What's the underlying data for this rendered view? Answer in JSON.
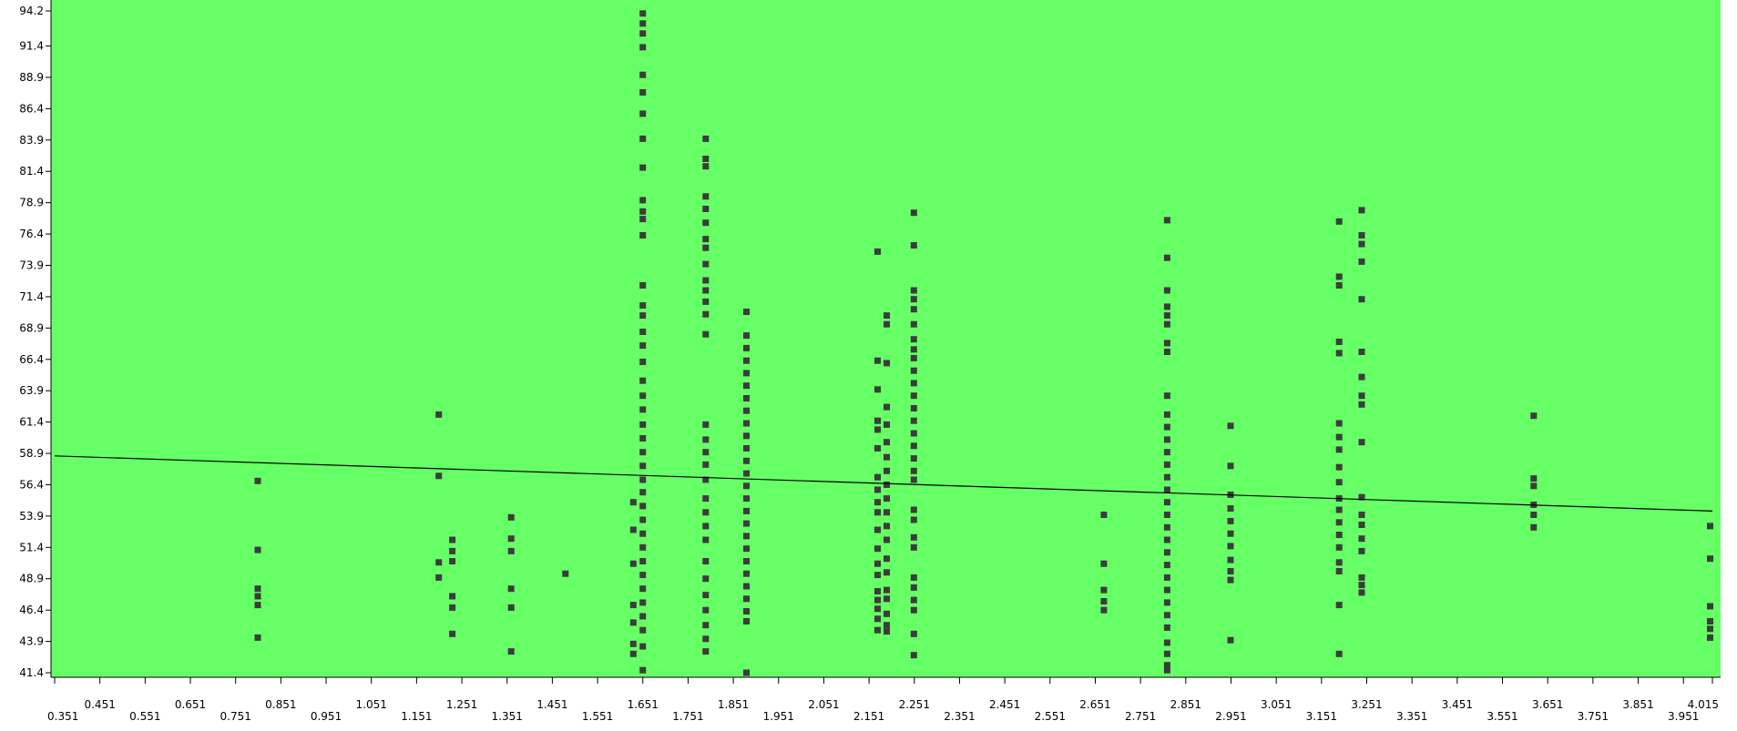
{
  "colors": {
    "plot_background": "#66ff66",
    "points": "#3c3c3c",
    "trend_line": "#000000",
    "axis": "#000000"
  },
  "chart_data": {
    "type": "scatter",
    "title": "",
    "xlabel": "",
    "ylabel": "",
    "grid": false,
    "xlim": [
      0.351,
      4.015
    ],
    "ylim": [
      41.4,
      94.2
    ],
    "x_ticks": [
      "0.351",
      "0.451",
      "0.551",
      "0.651",
      "0.751",
      "0.851",
      "0.951",
      "1.051",
      "1.151",
      "1.251",
      "1.351",
      "1.451",
      "1.551",
      "1.651",
      "1.751",
      "1.851",
      "1.951",
      "2.051",
      "2.151",
      "2.251",
      "2.351",
      "2.451",
      "2.551",
      "2.651",
      "2.751",
      "2.851",
      "2.951",
      "3.051",
      "3.151",
      "3.251",
      "3.351",
      "3.451",
      "3.551",
      "3.651",
      "3.751",
      "3.851",
      "3.951",
      "4.015"
    ],
    "y_ticks": [
      "41.4",
      "43.9",
      "46.4",
      "48.9",
      "51.4",
      "53.9",
      "56.4",
      "58.9",
      "61.4",
      "63.9",
      "66.4",
      "68.9",
      "71.4",
      "73.9",
      "76.4",
      "78.9",
      "81.4",
      "83.9",
      "86.4",
      "88.9",
      "91.4",
      "94.2"
    ],
    "trend_line": {
      "x": [
        0.351,
        4.015
      ],
      "y": [
        58.7,
        54.3
      ]
    },
    "series": [
      {
        "points": [
          [
            0.8,
            56.7
          ],
          [
            0.8,
            51.2
          ],
          [
            0.8,
            48.1
          ],
          [
            0.8,
            47.5
          ],
          [
            0.8,
            46.8
          ],
          [
            0.8,
            44.2
          ],
          [
            1.2,
            62.0
          ],
          [
            1.2,
            57.1
          ],
          [
            1.2,
            50.2
          ],
          [
            1.2,
            49.0
          ],
          [
            1.23,
            52.0
          ],
          [
            1.23,
            51.1
          ],
          [
            1.23,
            50.3
          ],
          [
            1.23,
            47.5
          ],
          [
            1.23,
            46.6
          ],
          [
            1.23,
            44.5
          ],
          [
            1.36,
            53.8
          ],
          [
            1.36,
            52.1
          ],
          [
            1.36,
            51.1
          ],
          [
            1.36,
            48.1
          ],
          [
            1.36,
            46.6
          ],
          [
            1.36,
            43.1
          ],
          [
            1.48,
            49.3
          ],
          [
            1.63,
            55.0
          ],
          [
            1.63,
            52.8
          ],
          [
            1.63,
            50.1
          ],
          [
            1.63,
            46.8
          ],
          [
            1.63,
            45.4
          ],
          [
            1.63,
            43.7
          ],
          [
            1.63,
            42.9
          ],
          [
            1.651,
            94.0
          ],
          [
            1.651,
            93.2
          ],
          [
            1.651,
            92.4
          ],
          [
            1.651,
            91.3
          ],
          [
            1.651,
            89.1
          ],
          [
            1.651,
            87.7
          ],
          [
            1.651,
            86.0
          ],
          [
            1.651,
            84.0
          ],
          [
            1.651,
            81.7
          ],
          [
            1.651,
            79.1
          ],
          [
            1.651,
            78.2
          ],
          [
            1.651,
            77.6
          ],
          [
            1.651,
            76.3
          ],
          [
            1.651,
            72.3
          ],
          [
            1.651,
            70.7
          ],
          [
            1.651,
            69.9
          ],
          [
            1.651,
            68.6
          ],
          [
            1.651,
            67.5
          ],
          [
            1.651,
            66.2
          ],
          [
            1.651,
            64.7
          ],
          [
            1.651,
            63.5
          ],
          [
            1.651,
            62.4
          ],
          [
            1.651,
            61.2
          ],
          [
            1.651,
            60.1
          ],
          [
            1.651,
            59.0
          ],
          [
            1.651,
            57.9
          ],
          [
            1.651,
            56.8
          ],
          [
            1.651,
            55.8
          ],
          [
            1.651,
            54.7
          ],
          [
            1.651,
            53.6
          ],
          [
            1.651,
            52.5
          ],
          [
            1.651,
            51.4
          ],
          [
            1.651,
            50.3
          ],
          [
            1.651,
            49.2
          ],
          [
            1.651,
            48.1
          ],
          [
            1.651,
            47.0
          ],
          [
            1.651,
            45.9
          ],
          [
            1.651,
            44.8
          ],
          [
            1.651,
            43.5
          ],
          [
            1.651,
            41.6
          ],
          [
            1.79,
            84.0
          ],
          [
            1.79,
            82.4
          ],
          [
            1.79,
            81.8
          ],
          [
            1.79,
            79.4
          ],
          [
            1.79,
            78.4
          ],
          [
            1.79,
            77.3
          ],
          [
            1.79,
            76.0
          ],
          [
            1.79,
            75.3
          ],
          [
            1.79,
            74.0
          ],
          [
            1.79,
            72.7
          ],
          [
            1.79,
            71.9
          ],
          [
            1.79,
            71.0
          ],
          [
            1.79,
            70.0
          ],
          [
            1.79,
            68.4
          ],
          [
            1.79,
            61.2
          ],
          [
            1.79,
            60.0
          ],
          [
            1.79,
            59.0
          ],
          [
            1.79,
            58.0
          ],
          [
            1.79,
            56.8
          ],
          [
            1.79,
            55.3
          ],
          [
            1.79,
            54.2
          ],
          [
            1.79,
            53.1
          ],
          [
            1.79,
            52.0
          ],
          [
            1.79,
            50.3
          ],
          [
            1.79,
            48.9
          ],
          [
            1.79,
            47.6
          ],
          [
            1.79,
            46.4
          ],
          [
            1.79,
            45.2
          ],
          [
            1.79,
            44.1
          ],
          [
            1.79,
            43.1
          ],
          [
            1.88,
            70.2
          ],
          [
            1.88,
            68.3
          ],
          [
            1.88,
            67.3
          ],
          [
            1.88,
            66.3
          ],
          [
            1.88,
            65.3
          ],
          [
            1.88,
            64.3
          ],
          [
            1.88,
            63.3
          ],
          [
            1.88,
            62.3
          ],
          [
            1.88,
            61.3
          ],
          [
            1.88,
            60.3
          ],
          [
            1.88,
            59.3
          ],
          [
            1.88,
            58.3
          ],
          [
            1.88,
            57.3
          ],
          [
            1.88,
            56.3
          ],
          [
            1.88,
            55.3
          ],
          [
            1.88,
            54.3
          ],
          [
            1.88,
            53.3
          ],
          [
            1.88,
            52.3
          ],
          [
            1.88,
            51.3
          ],
          [
            1.88,
            50.3
          ],
          [
            1.88,
            49.3
          ],
          [
            1.88,
            48.3
          ],
          [
            1.88,
            47.3
          ],
          [
            1.88,
            46.3
          ],
          [
            1.88,
            45.5
          ],
          [
            1.88,
            41.4
          ],
          [
            2.17,
            75.0
          ],
          [
            2.17,
            66.3
          ],
          [
            2.17,
            64.0
          ],
          [
            2.17,
            61.5
          ],
          [
            2.17,
            60.8
          ],
          [
            2.17,
            59.3
          ],
          [
            2.17,
            57.0
          ],
          [
            2.17,
            56.0
          ],
          [
            2.17,
            55.0
          ],
          [
            2.17,
            54.2
          ],
          [
            2.17,
            52.8
          ],
          [
            2.17,
            51.3
          ],
          [
            2.17,
            50.1
          ],
          [
            2.17,
            49.2
          ],
          [
            2.17,
            47.9
          ],
          [
            2.17,
            47.2
          ],
          [
            2.17,
            46.5
          ],
          [
            2.17,
            45.7
          ],
          [
            2.17,
            44.8
          ],
          [
            2.19,
            69.9
          ],
          [
            2.19,
            69.2
          ],
          [
            2.19,
            66.1
          ],
          [
            2.19,
            62.6
          ],
          [
            2.19,
            61.2
          ],
          [
            2.19,
            59.8
          ],
          [
            2.19,
            58.6
          ],
          [
            2.19,
            57.5
          ],
          [
            2.19,
            56.4
          ],
          [
            2.19,
            55.3
          ],
          [
            2.19,
            54.2
          ],
          [
            2.19,
            53.1
          ],
          [
            2.19,
            52.0
          ],
          [
            2.19,
            50.5
          ],
          [
            2.19,
            49.4
          ],
          [
            2.19,
            48.0
          ],
          [
            2.19,
            47.3
          ],
          [
            2.19,
            46.1
          ],
          [
            2.19,
            45.2
          ],
          [
            2.19,
            44.7
          ],
          [
            2.25,
            78.1
          ],
          [
            2.25,
            75.5
          ],
          [
            2.25,
            71.9
          ],
          [
            2.25,
            71.2
          ],
          [
            2.25,
            70.4
          ],
          [
            2.25,
            69.2
          ],
          [
            2.25,
            68.0
          ],
          [
            2.25,
            67.2
          ],
          [
            2.25,
            66.5
          ],
          [
            2.25,
            65.5
          ],
          [
            2.25,
            64.5
          ],
          [
            2.25,
            63.5
          ],
          [
            2.25,
            62.5
          ],
          [
            2.25,
            61.5
          ],
          [
            2.25,
            60.5
          ],
          [
            2.25,
            59.5
          ],
          [
            2.25,
            58.5
          ],
          [
            2.25,
            57.5
          ],
          [
            2.25,
            56.8
          ],
          [
            2.25,
            54.4
          ],
          [
            2.25,
            53.6
          ],
          [
            2.25,
            52.2
          ],
          [
            2.25,
            51.4
          ],
          [
            2.25,
            49.0
          ],
          [
            2.25,
            48.2
          ],
          [
            2.25,
            47.2
          ],
          [
            2.25,
            46.4
          ],
          [
            2.25,
            44.5
          ],
          [
            2.25,
            42.8
          ],
          [
            2.67,
            54.0
          ],
          [
            2.67,
            50.1
          ],
          [
            2.67,
            48.0
          ],
          [
            2.67,
            47.1
          ],
          [
            2.67,
            46.4
          ],
          [
            2.81,
            77.5
          ],
          [
            2.81,
            74.5
          ],
          [
            2.81,
            71.9
          ],
          [
            2.81,
            70.6
          ],
          [
            2.81,
            69.9
          ],
          [
            2.81,
            69.2
          ],
          [
            2.81,
            67.7
          ],
          [
            2.81,
            67.0
          ],
          [
            2.81,
            63.5
          ],
          [
            2.81,
            62.0
          ],
          [
            2.81,
            61.0
          ],
          [
            2.81,
            60.0
          ],
          [
            2.81,
            59.0
          ],
          [
            2.81,
            58.0
          ],
          [
            2.81,
            57.0
          ],
          [
            2.81,
            56.0
          ],
          [
            2.81,
            55.0
          ],
          [
            2.81,
            54.0
          ],
          [
            2.81,
            53.0
          ],
          [
            2.81,
            52.0
          ],
          [
            2.81,
            51.0
          ],
          [
            2.81,
            50.0
          ],
          [
            2.81,
            49.0
          ],
          [
            2.81,
            48.0
          ],
          [
            2.81,
            47.0
          ],
          [
            2.81,
            46.0
          ],
          [
            2.81,
            45.0
          ],
          [
            2.81,
            43.8
          ],
          [
            2.81,
            42.9
          ],
          [
            2.81,
            42.0
          ],
          [
            2.81,
            41.6
          ],
          [
            2.95,
            61.1
          ],
          [
            2.95,
            57.9
          ],
          [
            2.95,
            55.6
          ],
          [
            2.95,
            54.5
          ],
          [
            2.95,
            53.5
          ],
          [
            2.95,
            52.5
          ],
          [
            2.95,
            51.5
          ],
          [
            2.95,
            50.4
          ],
          [
            2.95,
            49.5
          ],
          [
            2.95,
            48.8
          ],
          [
            2.95,
            44.0
          ],
          [
            3.19,
            77.4
          ],
          [
            3.19,
            73.0
          ],
          [
            3.19,
            72.3
          ],
          [
            3.19,
            67.8
          ],
          [
            3.19,
            66.9
          ],
          [
            3.19,
            61.3
          ],
          [
            3.19,
            60.2
          ],
          [
            3.19,
            59.2
          ],
          [
            3.19,
            57.8
          ],
          [
            3.19,
            56.6
          ],
          [
            3.19,
            55.3
          ],
          [
            3.19,
            54.4
          ],
          [
            3.19,
            53.4
          ],
          [
            3.19,
            52.4
          ],
          [
            3.19,
            51.4
          ],
          [
            3.19,
            50.2
          ],
          [
            3.19,
            49.5
          ],
          [
            3.19,
            46.8
          ],
          [
            3.19,
            42.9
          ],
          [
            3.24,
            78.3
          ],
          [
            3.24,
            76.3
          ],
          [
            3.24,
            75.6
          ],
          [
            3.24,
            74.2
          ],
          [
            3.24,
            71.2
          ],
          [
            3.24,
            67.0
          ],
          [
            3.24,
            65.0
          ],
          [
            3.24,
            63.5
          ],
          [
            3.24,
            62.8
          ],
          [
            3.24,
            59.8
          ],
          [
            3.24,
            55.4
          ],
          [
            3.24,
            54.0
          ],
          [
            3.24,
            53.2
          ],
          [
            3.24,
            52.1
          ],
          [
            3.24,
            51.1
          ],
          [
            3.24,
            49.0
          ],
          [
            3.24,
            48.4
          ],
          [
            3.24,
            47.8
          ],
          [
            3.62,
            61.9
          ],
          [
            3.62,
            56.9
          ],
          [
            3.62,
            56.3
          ],
          [
            3.62,
            54.8
          ],
          [
            3.62,
            54.0
          ],
          [
            3.62,
            53.0
          ],
          [
            4.01,
            53.1
          ],
          [
            4.01,
            50.5
          ],
          [
            4.01,
            46.7
          ],
          [
            4.01,
            45.5
          ],
          [
            4.01,
            44.9
          ],
          [
            4.01,
            44.2
          ]
        ]
      }
    ]
  }
}
